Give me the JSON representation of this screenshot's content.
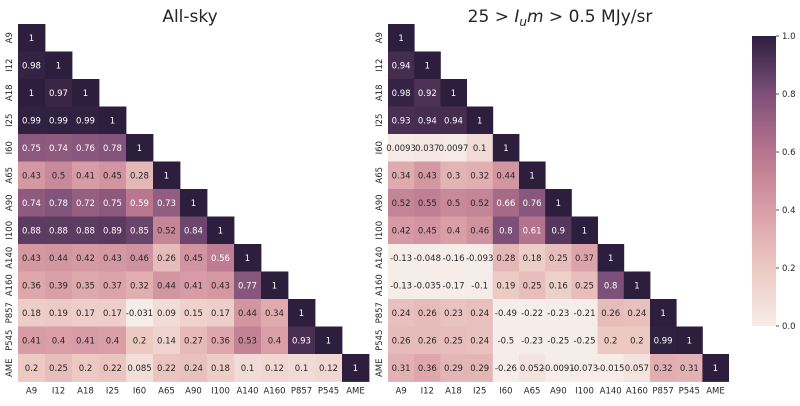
{
  "chart_data": [
    {
      "type": "heatmap",
      "title": "All-sky",
      "labels": [
        "A9",
        "I12",
        "A18",
        "I25",
        "I60",
        "A65",
        "A90",
        "I100",
        "A140",
        "A160",
        "P857",
        "P545",
        "AME"
      ],
      "matrix": [
        [
          1
        ],
        [
          0.98,
          1
        ],
        [
          1,
          0.97,
          1
        ],
        [
          0.99,
          0.99,
          0.99,
          1
        ],
        [
          0.75,
          0.74,
          0.76,
          0.78,
          1
        ],
        [
          0.43,
          0.5,
          0.41,
          0.45,
          0.28,
          1
        ],
        [
          0.74,
          0.78,
          0.72,
          0.75,
          0.59,
          0.73,
          1
        ],
        [
          0.88,
          0.88,
          0.88,
          0.89,
          0.85,
          0.52,
          0.84,
          1
        ],
        [
          0.43,
          0.44,
          0.42,
          0.43,
          0.46,
          0.26,
          0.45,
          0.56,
          1
        ],
        [
          0.36,
          0.39,
          0.35,
          0.37,
          0.32,
          0.44,
          0.41,
          0.43,
          0.77,
          1
        ],
        [
          0.18,
          0.19,
          0.17,
          0.17,
          -0.031,
          0.09,
          0.15,
          0.17,
          0.44,
          0.34,
          1
        ],
        [
          0.41,
          0.4,
          0.41,
          0.4,
          0.2,
          0.14,
          0.27,
          0.36,
          0.53,
          0.4,
          0.93,
          1
        ],
        [
          0.2,
          0.25,
          0.2,
          0.22,
          0.085,
          0.22,
          0.24,
          0.18,
          0.1,
          0.12,
          0.1,
          0.12,
          1
        ]
      ],
      "cell_labels": [
        [
          "1"
        ],
        [
          "0.98",
          "1"
        ],
        [
          "1",
          "0.97",
          "1"
        ],
        [
          "0.99",
          "0.99",
          "0.99",
          "1"
        ],
        [
          "0.75",
          "0.74",
          "0.76",
          "0.78",
          "1"
        ],
        [
          "0.43",
          "0.5",
          "0.41",
          "0.45",
          "0.28",
          "1"
        ],
        [
          "0.74",
          "0.78",
          "0.72",
          "0.75",
          "0.59",
          "0.73",
          "1"
        ],
        [
          "0.88",
          "0.88",
          "0.88",
          "0.89",
          "0.85",
          "0.52",
          "0.84",
          "1"
        ],
        [
          "0.43",
          "0.44",
          "0.42",
          "0.43",
          "0.46",
          "0.26",
          "0.45",
          "0.56",
          "1"
        ],
        [
          "0.36",
          "0.39",
          "0.35",
          "0.37",
          "0.32",
          "0.44",
          "0.41",
          "0.43",
          "0.77",
          "1"
        ],
        [
          "0.18",
          "0.19",
          "0.17",
          "0.17",
          "-0.031",
          "0.09",
          "0.15",
          "0.17",
          "0.44",
          "0.34",
          "1"
        ],
        [
          "0.41",
          "0.4",
          "0.41",
          "0.4",
          "0.2",
          "0.14",
          "0.27",
          "0.36",
          "0.53",
          "0.4",
          "0.93",
          "1"
        ],
        [
          "0.2",
          "0.25",
          "0.2",
          "0.22",
          "0.085",
          "0.22",
          "0.24",
          "0.18",
          "0.1",
          "0.12",
          "0.1",
          "0.12",
          "1"
        ]
      ],
      "value_range": [
        0,
        1
      ]
    },
    {
      "type": "heatmap",
      "title": "25 > I_um > 0.5 MJy/sr",
      "title_parts": [
        "25 > ",
        "I",
        "u",
        "m",
        " > 0.5 MJy/sr"
      ],
      "labels": [
        "A9",
        "I12",
        "A18",
        "I25",
        "I60",
        "A65",
        "A90",
        "I100",
        "A140",
        "A160",
        "P857",
        "P545",
        "AME"
      ],
      "matrix": [
        [
          1
        ],
        [
          0.94,
          1
        ],
        [
          0.98,
          0.92,
          1
        ],
        [
          0.93,
          0.94,
          0.94,
          1
        ],
        [
          0.0093,
          0.037,
          0.0097,
          0.1,
          1
        ],
        [
          0.34,
          0.43,
          0.3,
          0.32,
          0.44,
          1
        ],
        [
          0.52,
          0.55,
          0.5,
          0.52,
          0.66,
          0.76,
          1
        ],
        [
          0.42,
          0.45,
          0.4,
          0.46,
          0.8,
          0.61,
          0.9,
          1
        ],
        [
          -0.13,
          -0.048,
          -0.16,
          -0.093,
          0.28,
          0.18,
          0.25,
          0.37,
          1
        ],
        [
          -0.13,
          -0.035,
          -0.17,
          -0.1,
          0.19,
          0.25,
          0.16,
          0.25,
          0.8,
          1
        ],
        [
          0.24,
          0.26,
          0.23,
          0.24,
          -0.49,
          -0.22,
          -0.23,
          -0.21,
          0.26,
          0.24,
          1
        ],
        [
          0.26,
          0.26,
          0.25,
          0.24,
          -0.5,
          -0.23,
          -0.25,
          -0.25,
          0.2,
          0.2,
          0.99,
          1
        ],
        [
          0.31,
          0.36,
          0.29,
          0.29,
          -0.26,
          0.052,
          -0.0091,
          -0.073,
          -0.015,
          0.057,
          0.32,
          0.31,
          1
        ]
      ],
      "cell_labels": [
        [
          "1"
        ],
        [
          "0.94",
          "1"
        ],
        [
          "0.98",
          "0.92",
          "1"
        ],
        [
          "0.93",
          "0.94",
          "0.94",
          "1"
        ],
        [
          "0.0093",
          "0.037",
          "0.0097",
          "0.1",
          "1"
        ],
        [
          "0.34",
          "0.43",
          "0.3",
          "0.32",
          "0.44",
          "1"
        ],
        [
          "0.52",
          "0.55",
          "0.5",
          "0.52",
          "0.66",
          "0.76",
          "1"
        ],
        [
          "0.42",
          "0.45",
          "0.4",
          "0.46",
          "0.8",
          "0.61",
          "0.9",
          "1"
        ],
        [
          "-0.13",
          "-0.048",
          "-0.16",
          "-0.093",
          "0.28",
          "0.18",
          "0.25",
          "0.37",
          "1"
        ],
        [
          "-0.13",
          "-0.035",
          "-0.17",
          "-0.1",
          "0.19",
          "0.25",
          "0.16",
          "0.25",
          "0.8",
          "1"
        ],
        [
          "0.24",
          "0.26",
          "0.23",
          "0.24",
          "-0.49",
          "-0.22",
          "-0.23",
          "-0.21",
          "0.26",
          "0.24",
          "1"
        ],
        [
          "0.26",
          "0.26",
          "0.25",
          "0.24",
          "-0.5",
          "-0.23",
          "-0.25",
          "-0.25",
          "0.2",
          "0.2",
          "0.99",
          "1"
        ],
        [
          "0.31",
          "0.36",
          "0.29",
          "0.29",
          "-0.26",
          "0.052",
          "-0.0091",
          "-0.073",
          "-0.015",
          "0.057",
          "0.32",
          "0.31",
          "1"
        ]
      ],
      "value_range": [
        0,
        1
      ]
    }
  ],
  "colorbar": {
    "ticks": [
      "1.0",
      "0.8",
      "0.6",
      "0.4",
      "0.2",
      "0.0"
    ],
    "range": [
      0,
      1
    ]
  },
  "colors": {
    "low": "#f6ece8",
    "mid_low": "#e3b4b4",
    "mid": "#b16f8c",
    "mid_high": "#714b75",
    "high": "#2d1e3e",
    "text_dark": "#262626",
    "text_light": "#ffffff"
  }
}
